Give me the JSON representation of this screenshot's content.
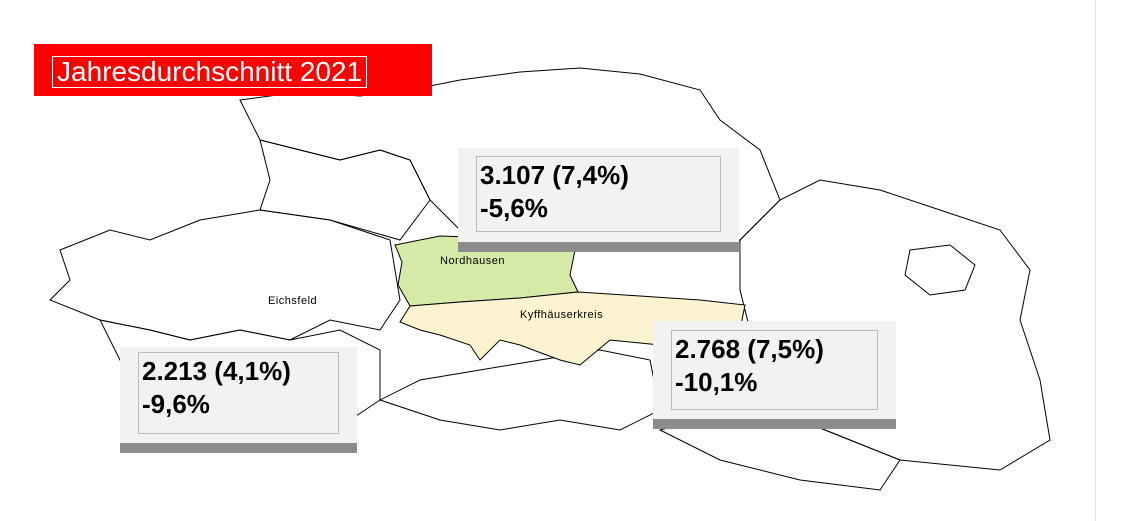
{
  "title": "Jahresdurchschnitt 2021",
  "colors": {
    "title_bg": "#ff0000",
    "nordhausen": "#d4eaa6",
    "kyffhaeuserkreis": "#fbf3cf",
    "callout_bg": "#f2f2f2",
    "callout_shadow": "#8c8c8c"
  },
  "regions": [
    {
      "name": "Nordhausen"
    },
    {
      "name": "Kyffhäuserkreis"
    },
    {
      "name": "Eichsfeld"
    }
  ],
  "callouts": [
    {
      "region": "Nordhausen",
      "line1": "3.107 (7,4%)",
      "line2": "-5,6%"
    },
    {
      "region": "Eichsfeld",
      "line1": "2.213 (4,1%)",
      "line2": "-9,6%"
    },
    {
      "region": "Kyffhäuserkreis",
      "line1": "2.768 (7,5%)",
      "line2": "-10,1%"
    }
  ]
}
